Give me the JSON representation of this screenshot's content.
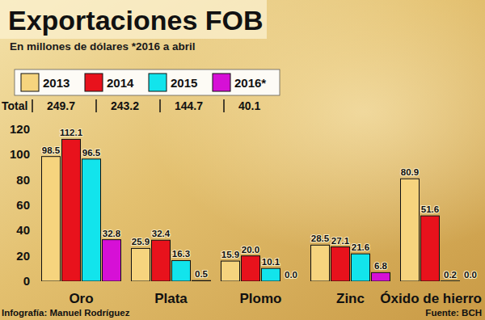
{
  "chart_data": {
    "type": "bar",
    "title": "Exportaciones FOB",
    "subtitle": "En millones de dólares *2016 a abril",
    "total_label": "Total",
    "credit": "Infografía: Manuel Rodríguez",
    "source": "Fuente: BCH",
    "categories": [
      "Oro",
      "Plata",
      "Plomo",
      "Zinc",
      "Óxido de hierro"
    ],
    "series": [
      {
        "name": "2013",
        "color": "#f6d47e",
        "total": 249.7,
        "values": [
          98.5,
          25.9,
          15.9,
          28.5,
          80.9
        ],
        "value_labels": [
          "98.5",
          "25.9",
          "15.9",
          "28.5",
          "80.9"
        ]
      },
      {
        "name": "2014",
        "color": "#e8121c",
        "total": 243.2,
        "values": [
          112.1,
          32.4,
          20.0,
          27.1,
          51.6
        ],
        "value_labels": [
          "112.1",
          "32.4",
          "20.0",
          "27.1",
          "51.6"
        ]
      },
      {
        "name": "2015",
        "color": "#12e4ec",
        "total": 144.7,
        "values": [
          96.5,
          16.3,
          10.1,
          21.6,
          0.2
        ],
        "value_labels": [
          "96.5",
          "16.3",
          "10.1",
          "21.6",
          "0.2"
        ]
      },
      {
        "name": "2016*",
        "color": "#d610d6",
        "total": 40.1,
        "values": [
          32.8,
          0.5,
          0.0,
          6.8,
          0.0
        ],
        "value_labels": [
          "32.8",
          "0.5",
          "0.0",
          "6.8",
          "0.0"
        ]
      }
    ],
    "ylim": [
      0,
      120
    ],
    "yticks": [
      0,
      20,
      40,
      60,
      80,
      100,
      120
    ],
    "grid": false,
    "legend": "top",
    "data_labels": true
  }
}
